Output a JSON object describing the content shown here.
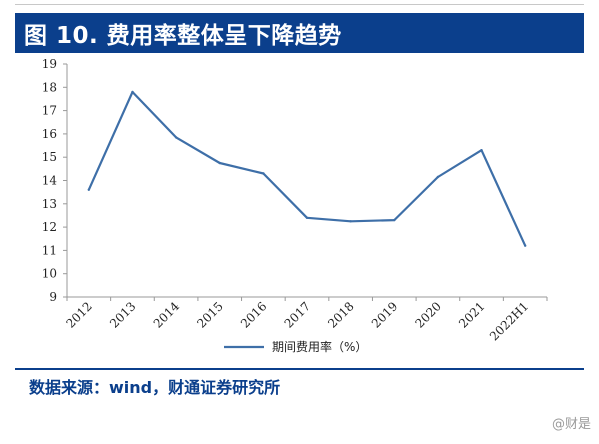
{
  "header": {
    "title": "图 10. 费用率整体呈下降趋势"
  },
  "source": {
    "text": "数据来源：wind，财通证券研究所"
  },
  "watermark": {
    "text": "财是"
  },
  "colors": {
    "brand": "#0b3f8c",
    "line": "#3e6fa8",
    "axis": "#999999"
  },
  "chart_data": {
    "type": "line",
    "categories": [
      "2012",
      "2013",
      "2014",
      "2015",
      "2016",
      "2017",
      "2018",
      "2019",
      "2020",
      "2021",
      "2022H1"
    ],
    "series": [
      {
        "name": "期间费用率（%）",
        "values": [
          13.6,
          17.8,
          15.85,
          14.75,
          14.3,
          12.4,
          12.25,
          12.3,
          14.15,
          15.3,
          11.2
        ]
      }
    ],
    "yticks": [
      "9",
      "10",
      "11",
      "12",
      "13",
      "14",
      "15",
      "16",
      "17",
      "18",
      "19"
    ],
    "ylim": [
      9,
      19
    ],
    "grid": false,
    "legend": "bottom-center",
    "title": "",
    "xlabel": "",
    "ylabel": ""
  }
}
